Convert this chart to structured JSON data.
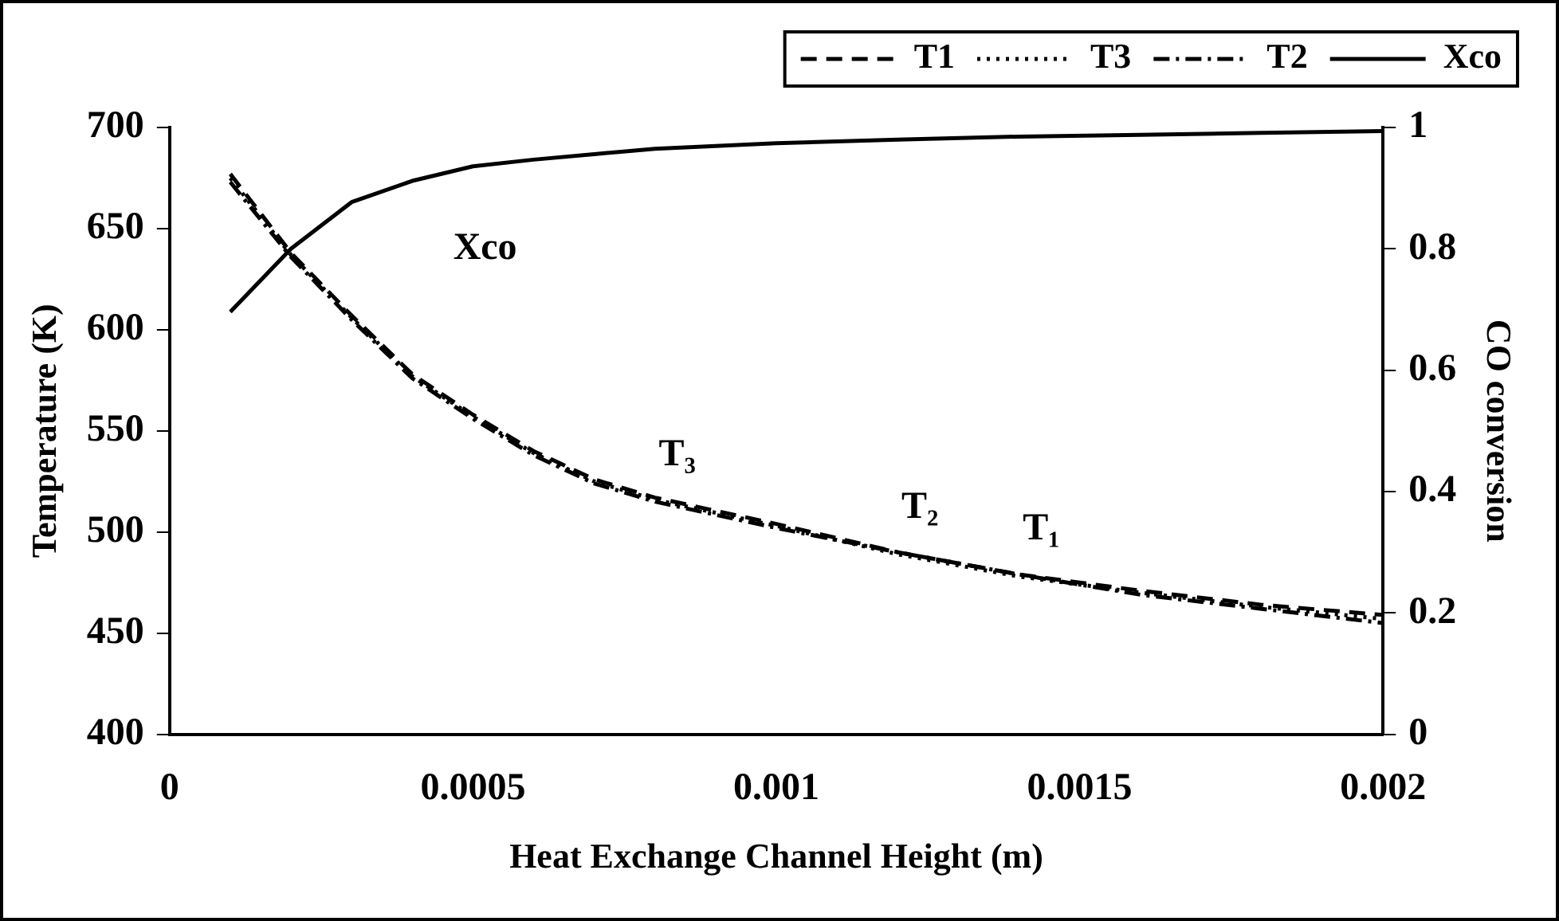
{
  "chart_data": {
    "type": "line",
    "xlabel": "Heat Exchange Channel Height (m)",
    "ylabel": "Temperature (K)",
    "y2label": "CO conversion",
    "x": [
      0.0001,
      0.0002,
      0.0003,
      0.0004,
      0.0005,
      0.0006,
      0.0007,
      0.0008,
      0.001,
      0.0012,
      0.0014,
      0.0016,
      0.0018,
      0.002
    ],
    "series": [
      {
        "name": "T1",
        "color": "#000000",
        "line_style": "dashed",
        "values": [
          677,
          638,
          607,
          578,
          558,
          540,
          526,
          517,
          504,
          490,
          479,
          471,
          464,
          459
        ]
      },
      {
        "name": "T3",
        "color": "#000000",
        "line_style": "dotted",
        "values": [
          675,
          637,
          606,
          577,
          557,
          539,
          525,
          516,
          503,
          489,
          478,
          470,
          463,
          457
        ]
      },
      {
        "name": "T2",
        "color": "#000000",
        "line_style": "dashdot",
        "values": [
          673,
          636,
          605,
          576,
          556,
          538,
          524,
          515,
          502,
          490,
          479,
          469,
          462,
          455
        ]
      },
      {
        "name": "Xco",
        "color": "#000000",
        "line_style": "solid",
        "axis": "y2",
        "values": [
          0.696,
          0.8,
          0.877,
          0.912,
          0.936,
          0.947,
          0.956,
          0.965,
          0.974,
          0.98,
          0.985,
          0.988,
          0.991,
          0.994
        ]
      }
    ],
    "xlim": [
      0,
      0.002
    ],
    "xticks": [
      0,
      0.0005,
      0.001,
      0.0015,
      0.002
    ],
    "ylim": [
      400,
      700
    ],
    "yticks": [
      400,
      450,
      500,
      550,
      600,
      650,
      700
    ],
    "y2lim": [
      0,
      1
    ],
    "y2ticks": [
      0,
      0.2,
      0.4,
      0.6,
      0.8,
      1
    ],
    "legend": "top right",
    "grid": false,
    "marker": "none",
    "annotations": [
      "Xco",
      {
        "text": "T₃",
        "x": 0.0008,
        "y": 516
      },
      {
        "text": "T₂",
        "x": 0.0012,
        "y": 490
      },
      {
        "text": "T₁",
        "x": 0.0014,
        "y": 479
      }
    ]
  }
}
